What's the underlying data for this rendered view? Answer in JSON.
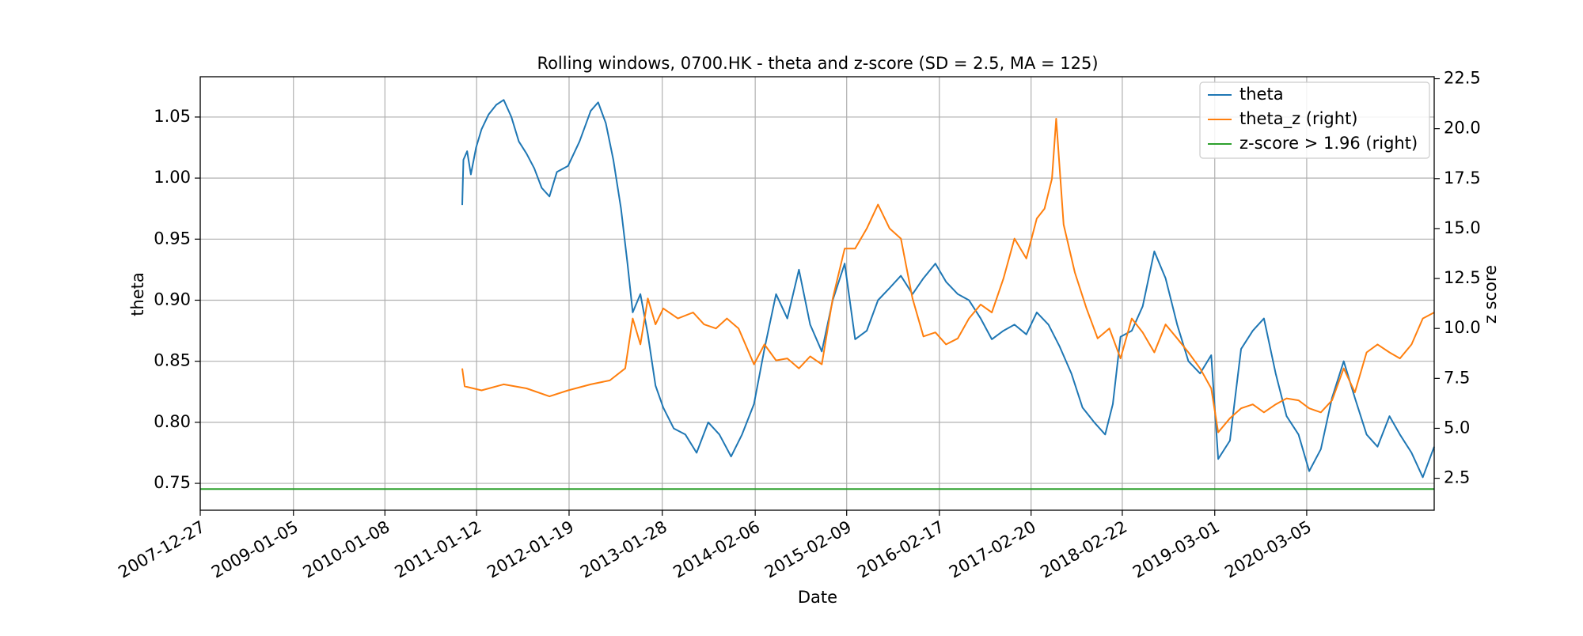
{
  "chart_data": {
    "type": "line",
    "title": "Rolling windows, 0700.HK - theta and z-score (SD = 2.5, MA = 125)",
    "xlabel": "Date",
    "ylabel": "theta",
    "y2label": "z score",
    "xlim": [
      "2007-12-27",
      "2021-07-31"
    ],
    "ylim": [
      0.728,
      1.083
    ],
    "y2lim": [
      0.9,
      22.6
    ],
    "xticks": [
      "2007-12-27",
      "2009-01-05",
      "2010-01-08",
      "2011-01-12",
      "2012-01-19",
      "2013-01-28",
      "2014-02-06",
      "2015-02-09",
      "2016-02-17",
      "2017-02-20",
      "2018-02-22",
      "2019-03-01",
      "2020-03-05"
    ],
    "yticks": [
      "0.75",
      "0.80",
      "0.85",
      "0.90",
      "0.95",
      "1.00",
      "1.05"
    ],
    "y2ticks": [
      "2.5",
      "5.0",
      "7.5",
      "10.0",
      "12.5",
      "15.0",
      "17.5",
      "20.0",
      "22.5"
    ],
    "grid": true,
    "legend_position": "top-right",
    "series": [
      {
        "name": "theta",
        "axis": "left",
        "color": "#1f77b4",
        "points": [
          [
            "2010-11-15",
            0.978
          ],
          [
            "2010-11-20",
            1.015
          ],
          [
            "2010-12-05",
            1.022
          ],
          [
            "2010-12-20",
            1.003
          ],
          [
            "2011-01-10",
            1.025
          ],
          [
            "2011-02-01",
            1.04
          ],
          [
            "2011-03-01",
            1.052
          ],
          [
            "2011-04-01",
            1.06
          ],
          [
            "2011-05-01",
            1.064
          ],
          [
            "2011-06-01",
            1.05
          ],
          [
            "2011-07-01",
            1.03
          ],
          [
            "2011-08-01",
            1.02
          ],
          [
            "2011-09-01",
            1.008
          ],
          [
            "2011-10-01",
            0.992
          ],
          [
            "2011-11-01",
            0.985
          ],
          [
            "2011-12-01",
            1.005
          ],
          [
            "2012-01-15",
            1.01
          ],
          [
            "2012-03-01",
            1.03
          ],
          [
            "2012-04-15",
            1.055
          ],
          [
            "2012-05-15",
            1.062
          ],
          [
            "2012-06-15",
            1.045
          ],
          [
            "2012-07-15",
            1.015
          ],
          [
            "2012-08-15",
            0.975
          ],
          [
            "2012-09-10",
            0.93
          ],
          [
            "2012-10-01",
            0.89
          ],
          [
            "2012-11-01",
            0.905
          ],
          [
            "2012-12-01",
            0.872
          ],
          [
            "2013-01-01",
            0.83
          ],
          [
            "2013-02-01",
            0.812
          ],
          [
            "2013-03-15",
            0.795
          ],
          [
            "2013-05-01",
            0.79
          ],
          [
            "2013-06-15",
            0.775
          ],
          [
            "2013-08-01",
            0.8
          ],
          [
            "2013-09-15",
            0.79
          ],
          [
            "2013-11-01",
            0.772
          ],
          [
            "2013-12-15",
            0.79
          ],
          [
            "2014-02-01",
            0.815
          ],
          [
            "2014-03-15",
            0.86
          ],
          [
            "2014-05-01",
            0.905
          ],
          [
            "2014-06-15",
            0.885
          ],
          [
            "2014-08-01",
            0.925
          ],
          [
            "2014-09-15",
            0.88
          ],
          [
            "2014-11-01",
            0.858
          ],
          [
            "2014-12-15",
            0.9
          ],
          [
            "2015-02-01",
            0.93
          ],
          [
            "2015-03-15",
            0.868
          ],
          [
            "2015-05-01",
            0.875
          ],
          [
            "2015-06-15",
            0.9
          ],
          [
            "2015-08-01",
            0.91
          ],
          [
            "2015-09-15",
            0.92
          ],
          [
            "2015-11-01",
            0.905
          ],
          [
            "2015-12-15",
            0.918
          ],
          [
            "2016-02-01",
            0.93
          ],
          [
            "2016-03-15",
            0.915
          ],
          [
            "2016-05-01",
            0.905
          ],
          [
            "2016-06-15",
            0.9
          ],
          [
            "2016-08-01",
            0.885
          ],
          [
            "2016-09-15",
            0.868
          ],
          [
            "2016-11-01",
            0.875
          ],
          [
            "2016-12-15",
            0.88
          ],
          [
            "2017-02-01",
            0.872
          ],
          [
            "2017-03-15",
            0.89
          ],
          [
            "2017-05-01",
            0.88
          ],
          [
            "2017-06-15",
            0.862
          ],
          [
            "2017-08-01",
            0.84
          ],
          [
            "2017-09-15",
            0.812
          ],
          [
            "2017-11-01",
            0.8
          ],
          [
            "2017-12-15",
            0.79
          ],
          [
            "2018-01-15",
            0.815
          ],
          [
            "2018-02-15",
            0.87
          ],
          [
            "2018-04-01",
            0.875
          ],
          [
            "2018-05-15",
            0.895
          ],
          [
            "2018-07-01",
            0.94
          ],
          [
            "2018-08-15",
            0.918
          ],
          [
            "2018-10-01",
            0.88
          ],
          [
            "2018-11-15",
            0.85
          ],
          [
            "2019-01-01",
            0.84
          ],
          [
            "2019-02-15",
            0.855
          ],
          [
            "2019-03-15",
            0.77
          ],
          [
            "2019-05-01",
            0.785
          ],
          [
            "2019-06-15",
            0.86
          ],
          [
            "2019-08-01",
            0.875
          ],
          [
            "2019-09-15",
            0.885
          ],
          [
            "2019-11-01",
            0.84
          ],
          [
            "2019-12-15",
            0.805
          ],
          [
            "2020-02-01",
            0.79
          ],
          [
            "2020-03-15",
            0.76
          ],
          [
            "2020-05-01",
            0.778
          ],
          [
            "2020-06-15",
            0.82
          ],
          [
            "2020-08-01",
            0.85
          ],
          [
            "2020-09-15",
            0.82
          ],
          [
            "2020-11-01",
            0.79
          ],
          [
            "2020-12-15",
            0.78
          ],
          [
            "2021-02-01",
            0.805
          ],
          [
            "2021-03-15",
            0.79
          ],
          [
            "2021-05-01",
            0.775
          ],
          [
            "2021-06-15",
            0.755
          ],
          [
            "2021-07-31",
            0.78
          ]
        ]
      },
      {
        "name": "theta_z (right)",
        "axis": "right",
        "color": "#ff7f0e",
        "points": [
          [
            "2010-11-15",
            8.0
          ],
          [
            "2010-11-25",
            7.1
          ],
          [
            "2011-02-01",
            6.9
          ],
          [
            "2011-05-01",
            7.2
          ],
          [
            "2011-08-01",
            7.0
          ],
          [
            "2011-11-01",
            6.6
          ],
          [
            "2012-01-15",
            6.9
          ],
          [
            "2012-04-15",
            7.2
          ],
          [
            "2012-07-01",
            7.4
          ],
          [
            "2012-09-01",
            8.0
          ],
          [
            "2012-10-01",
            10.5
          ],
          [
            "2012-11-01",
            9.2
          ],
          [
            "2012-12-01",
            11.5
          ],
          [
            "2013-01-01",
            10.2
          ],
          [
            "2013-02-01",
            11.0
          ],
          [
            "2013-04-01",
            10.5
          ],
          [
            "2013-06-01",
            10.8
          ],
          [
            "2013-07-15",
            10.2
          ],
          [
            "2013-09-01",
            10.0
          ],
          [
            "2013-10-15",
            10.5
          ],
          [
            "2013-12-01",
            10.0
          ],
          [
            "2014-02-01",
            8.2
          ],
          [
            "2014-03-15",
            9.2
          ],
          [
            "2014-05-01",
            8.4
          ],
          [
            "2014-06-15",
            8.5
          ],
          [
            "2014-08-01",
            8.0
          ],
          [
            "2014-09-15",
            8.6
          ],
          [
            "2014-11-01",
            8.2
          ],
          [
            "2014-12-15",
            11.5
          ],
          [
            "2015-02-01",
            14.0
          ],
          [
            "2015-03-15",
            14.0
          ],
          [
            "2015-05-01",
            15.0
          ],
          [
            "2015-06-15",
            16.2
          ],
          [
            "2015-08-01",
            15.0
          ],
          [
            "2015-09-15",
            14.5
          ],
          [
            "2015-11-01",
            11.5
          ],
          [
            "2015-12-15",
            9.6
          ],
          [
            "2016-02-01",
            9.8
          ],
          [
            "2016-03-15",
            9.2
          ],
          [
            "2016-05-01",
            9.5
          ],
          [
            "2016-06-15",
            10.5
          ],
          [
            "2016-08-01",
            11.2
          ],
          [
            "2016-09-15",
            10.8
          ],
          [
            "2016-11-01",
            12.5
          ],
          [
            "2016-12-15",
            14.5
          ],
          [
            "2017-02-01",
            13.5
          ],
          [
            "2017-03-15",
            15.5
          ],
          [
            "2017-04-15",
            16.0
          ],
          [
            "2017-05-15",
            17.5
          ],
          [
            "2017-06-01",
            20.5
          ],
          [
            "2017-07-01",
            15.2
          ],
          [
            "2017-08-15",
            12.8
          ],
          [
            "2017-10-01",
            11.0
          ],
          [
            "2017-11-15",
            9.5
          ],
          [
            "2018-01-01",
            10.0
          ],
          [
            "2018-02-15",
            8.5
          ],
          [
            "2018-04-01",
            10.5
          ],
          [
            "2018-05-15",
            9.8
          ],
          [
            "2018-07-01",
            8.8
          ],
          [
            "2018-08-15",
            10.2
          ],
          [
            "2018-10-01",
            9.5
          ],
          [
            "2018-11-15",
            8.8
          ],
          [
            "2019-01-01",
            8.0
          ],
          [
            "2019-02-15",
            7.0
          ],
          [
            "2019-03-15",
            4.8
          ],
          [
            "2019-05-01",
            5.5
          ],
          [
            "2019-06-15",
            6.0
          ],
          [
            "2019-08-01",
            6.2
          ],
          [
            "2019-09-15",
            5.8
          ],
          [
            "2019-11-01",
            6.2
          ],
          [
            "2019-12-15",
            6.5
          ],
          [
            "2020-02-01",
            6.4
          ],
          [
            "2020-03-15",
            6.0
          ],
          [
            "2020-05-01",
            5.8
          ],
          [
            "2020-06-15",
            6.4
          ],
          [
            "2020-08-01",
            8.0
          ],
          [
            "2020-09-15",
            6.8
          ],
          [
            "2020-11-01",
            8.8
          ],
          [
            "2020-12-15",
            9.2
          ],
          [
            "2021-02-01",
            8.8
          ],
          [
            "2021-03-15",
            8.5
          ],
          [
            "2021-05-01",
            9.2
          ],
          [
            "2021-06-15",
            10.5
          ],
          [
            "2021-07-31",
            10.8
          ]
        ]
      },
      {
        "name": "z-score > 1.96 (right)",
        "axis": "right",
        "color": "#2ca02c",
        "points": [
          [
            "2007-12-27",
            1.96
          ],
          [
            "2021-07-31",
            1.96
          ]
        ]
      }
    ]
  }
}
